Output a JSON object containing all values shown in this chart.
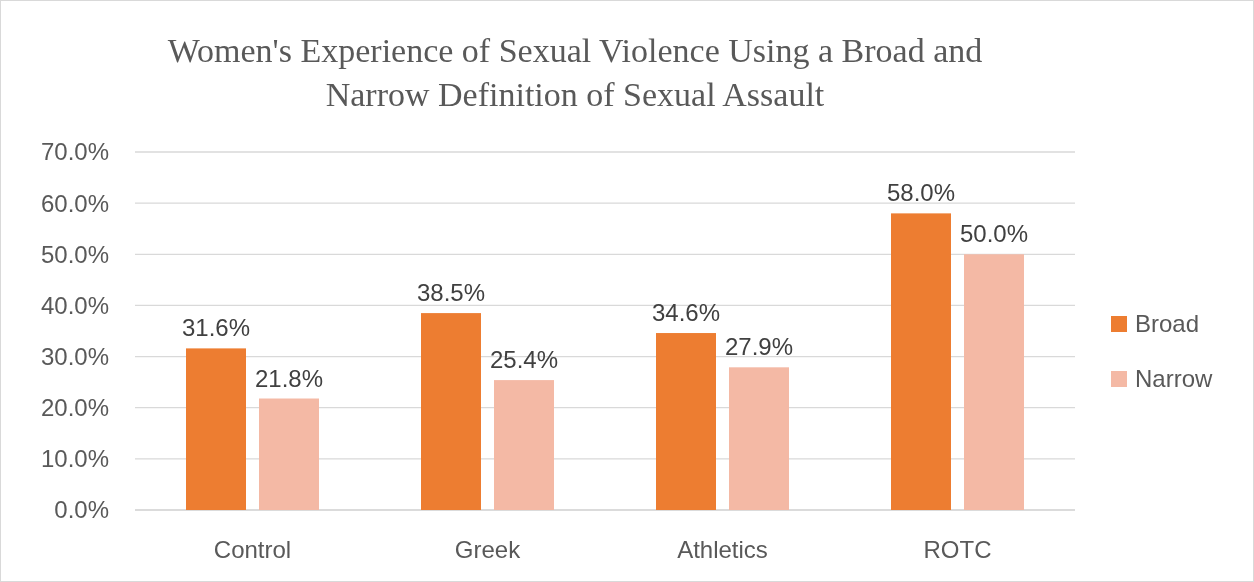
{
  "chart_data": {
    "type": "bar",
    "title": "Women's Experience of Sexual Violence Using a Broad and Narrow Definition of Sexual Assault",
    "categories": [
      "Control",
      "Greek",
      "Athletics",
      "ROTC"
    ],
    "series": [
      {
        "name": "Broad",
        "color": "#ed7d31",
        "values": [
          31.6,
          38.5,
          34.6,
          58.0
        ],
        "value_labels": [
          "31.6%",
          "38.5%",
          "34.6%",
          "58.0%"
        ]
      },
      {
        "name": "Narrow",
        "color": "#f4b9a5",
        "values": [
          21.8,
          25.4,
          27.9,
          50.0
        ],
        "value_labels": [
          "21.8%",
          "25.4%",
          "27.9%",
          "50.0%"
        ]
      }
    ],
    "ylim": [
      0,
      70
    ],
    "yticks": [
      {
        "value": 0,
        "label": "0.0%"
      },
      {
        "value": 10,
        "label": "10.0%"
      },
      {
        "value": 20,
        "label": "20.0%"
      },
      {
        "value": 30,
        "label": "30.0%"
      },
      {
        "value": 40,
        "label": "40.0%"
      },
      {
        "value": 50,
        "label": "50.0%"
      },
      {
        "value": 60,
        "label": "60.0%"
      },
      {
        "value": 70,
        "label": "70.0%"
      }
    ],
    "grid": "y",
    "legend": "right"
  }
}
